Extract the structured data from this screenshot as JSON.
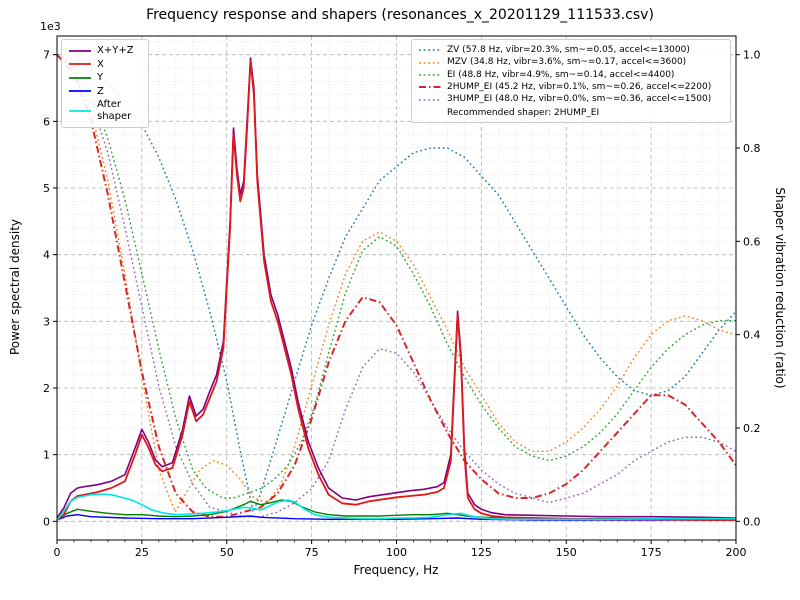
{
  "chart_data": {
    "type": "line",
    "title": "Frequency response and shapers (resonances_x_20201129_111533.csv)",
    "xlabel": "Frequency, Hz",
    "ylabel_left": "Power spectral density",
    "ylabel_left_offset": "1e3",
    "ylabel_right": "Shaper vibration reduction (ratio)",
    "xlim": [
      0,
      200
    ],
    "ylim_left": [
      0,
      7
    ],
    "ylim_right": [
      0,
      1
    ],
    "x_ticks": [
      0,
      25,
      50,
      75,
      100,
      125,
      150,
      175,
      200
    ],
    "y_ticks_left": [
      0,
      1,
      2,
      3,
      4,
      5,
      6,
      7
    ],
    "y_ticks_right": [
      0.0,
      0.2,
      0.4,
      0.6,
      0.8,
      1.0
    ],
    "x_minor_step": 5,
    "y_left_minor_step": 0.2,
    "grid": "both",
    "series": [
      {
        "id": "zv",
        "name": "ZV",
        "axis": "right",
        "color": "#1f77b4",
        "style": "dotted",
        "width": 1.4,
        "x": [
          0,
          5,
          10,
          15,
          20,
          25,
          30,
          35,
          40,
          45,
          50,
          54,
          57.8,
          60,
          65,
          70,
          75,
          80,
          85,
          90,
          95,
          100,
          105,
          110,
          115,
          120,
          125,
          130,
          135,
          140,
          145,
          150,
          155,
          160,
          165,
          170,
          175,
          180,
          185,
          190,
          195,
          200
        ],
        "y": [
          1.0,
          0.99,
          0.97,
          0.94,
          0.9,
          0.85,
          0.78,
          0.69,
          0.58,
          0.45,
          0.3,
          0.15,
          0.02,
          0.06,
          0.18,
          0.3,
          0.42,
          0.52,
          0.61,
          0.67,
          0.73,
          0.76,
          0.79,
          0.8,
          0.8,
          0.78,
          0.74,
          0.7,
          0.64,
          0.58,
          0.52,
          0.46,
          0.4,
          0.35,
          0.31,
          0.28,
          0.27,
          0.28,
          0.31,
          0.36,
          0.41,
          0.45
        ]
      },
      {
        "id": "mzv",
        "name": "MZV",
        "axis": "right",
        "color": "#ff7f0e",
        "style": "dotted",
        "width": 1.4,
        "x": [
          0,
          5,
          10,
          15,
          20,
          25,
          30,
          34.8,
          38,
          42,
          46,
          50,
          54,
          58,
          62,
          66,
          70,
          75,
          80,
          85,
          90,
          95,
          100,
          105,
          110,
          115,
          120,
          125,
          130,
          135,
          140,
          145,
          150,
          155,
          160,
          165,
          170,
          175,
          180,
          185,
          190,
          195,
          200
        ],
        "y": [
          1.0,
          0.97,
          0.88,
          0.73,
          0.53,
          0.31,
          0.11,
          0.02,
          0.06,
          0.11,
          0.13,
          0.12,
          0.09,
          0.05,
          0.04,
          0.08,
          0.16,
          0.29,
          0.42,
          0.53,
          0.6,
          0.62,
          0.6,
          0.55,
          0.48,
          0.41,
          0.33,
          0.27,
          0.21,
          0.17,
          0.15,
          0.15,
          0.17,
          0.2,
          0.24,
          0.29,
          0.35,
          0.4,
          0.43,
          0.44,
          0.43,
          0.41,
          0.4
        ]
      },
      {
        "id": "ei",
        "name": "EI",
        "axis": "right",
        "color": "#2ca02c",
        "style": "dotted",
        "width": 1.4,
        "x": [
          0,
          5,
          10,
          15,
          20,
          25,
          30,
          35,
          40,
          44,
          48.8,
          52,
          56,
          60,
          64,
          68,
          72,
          76,
          80,
          85,
          90,
          95,
          100,
          105,
          110,
          115,
          120,
          125,
          130,
          135,
          140,
          145,
          150,
          155,
          160,
          165,
          170,
          175,
          180,
          185,
          190,
          195,
          200
        ],
        "y": [
          1.0,
          0.98,
          0.92,
          0.82,
          0.69,
          0.53,
          0.37,
          0.22,
          0.11,
          0.07,
          0.05,
          0.05,
          0.06,
          0.07,
          0.09,
          0.12,
          0.17,
          0.25,
          0.36,
          0.49,
          0.58,
          0.61,
          0.59,
          0.53,
          0.46,
          0.38,
          0.31,
          0.25,
          0.2,
          0.16,
          0.14,
          0.13,
          0.14,
          0.16,
          0.19,
          0.23,
          0.28,
          0.33,
          0.37,
          0.4,
          0.42,
          0.43,
          0.43
        ]
      },
      {
        "id": "hump3_ei",
        "name": "3HUMP_EI",
        "axis": "right",
        "color": "#9467bd",
        "style": "dotted",
        "width": 1.4,
        "x": [
          0,
          5,
          10,
          15,
          20,
          25,
          30,
          35,
          40,
          45,
          50,
          55,
          60,
          65,
          70,
          75,
          80,
          85,
          90,
          95,
          100,
          105,
          110,
          115,
          120,
          125,
          130,
          135,
          140,
          145,
          150,
          155,
          160,
          165,
          170,
          175,
          180,
          185,
          190,
          195,
          200
        ],
        "y": [
          1.0,
          0.97,
          0.9,
          0.79,
          0.63,
          0.46,
          0.29,
          0.16,
          0.08,
          0.03,
          0.02,
          0.01,
          0.01,
          0.02,
          0.04,
          0.07,
          0.13,
          0.24,
          0.33,
          0.37,
          0.36,
          0.32,
          0.26,
          0.2,
          0.15,
          0.11,
          0.08,
          0.06,
          0.05,
          0.04,
          0.05,
          0.06,
          0.08,
          0.1,
          0.13,
          0.15,
          0.17,
          0.18,
          0.18,
          0.17,
          0.15
        ]
      },
      {
        "id": "hump2_ei",
        "name": "2HUMP_EI",
        "axis": "right",
        "color": "#d62728",
        "style": "dashdot",
        "width": 2.0,
        "x": [
          0,
          5,
          10,
          15,
          20,
          25,
          30,
          35,
          40,
          45,
          50,
          55,
          60,
          65,
          70,
          75,
          80,
          85,
          90,
          95,
          100,
          105,
          110,
          115,
          120,
          125,
          130,
          135,
          140,
          145,
          150,
          155,
          160,
          165,
          170,
          175,
          180,
          185,
          190,
          195,
          200
        ],
        "y": [
          1.0,
          0.96,
          0.86,
          0.7,
          0.51,
          0.32,
          0.16,
          0.06,
          0.02,
          0.01,
          0.01,
          0.02,
          0.03,
          0.06,
          0.12,
          0.22,
          0.34,
          0.43,
          0.48,
          0.47,
          0.42,
          0.34,
          0.26,
          0.19,
          0.13,
          0.09,
          0.06,
          0.05,
          0.05,
          0.06,
          0.08,
          0.11,
          0.15,
          0.19,
          0.23,
          0.27,
          0.27,
          0.25,
          0.21,
          0.17,
          0.12
        ]
      },
      {
        "id": "psd_xyz",
        "name": "X+Y+Z",
        "axis": "left",
        "color": "#800080",
        "style": "solid",
        "width": 1.6,
        "x": [
          0,
          2,
          4,
          6,
          8,
          12,
          16,
          20,
          23,
          25,
          27,
          29,
          31,
          34,
          37,
          39,
          41,
          43,
          45,
          47,
          49,
          51,
          52,
          53,
          54,
          55,
          56,
          57,
          58,
          59,
          61,
          63,
          65,
          67,
          69,
          71,
          74,
          77,
          80,
          84,
          88,
          92,
          96,
          100,
          104,
          108,
          112,
          114,
          116,
          117,
          118,
          119,
          120,
          121,
          123,
          125,
          128,
          132,
          140,
          150,
          160,
          175,
          190,
          200
        ],
        "y": [
          0.05,
          0.2,
          0.42,
          0.5,
          0.52,
          0.55,
          0.6,
          0.7,
          1.1,
          1.38,
          1.18,
          0.92,
          0.82,
          0.88,
          1.38,
          1.88,
          1.58,
          1.68,
          1.95,
          2.2,
          2.7,
          4.5,
          5.9,
          5.3,
          4.9,
          5.1,
          6.0,
          6.95,
          6.5,
          5.2,
          4.0,
          3.4,
          3.1,
          2.7,
          2.3,
          1.8,
          1.2,
          0.8,
          0.5,
          0.35,
          0.32,
          0.37,
          0.4,
          0.43,
          0.46,
          0.48,
          0.52,
          0.58,
          1.0,
          2.1,
          3.15,
          2.5,
          1.1,
          0.42,
          0.25,
          0.18,
          0.13,
          0.1,
          0.09,
          0.08,
          0.07,
          0.07,
          0.06,
          0.05
        ]
      },
      {
        "id": "psd_y",
        "name": "Y",
        "axis": "left",
        "color": "#008000",
        "style": "solid",
        "width": 1.4,
        "x": [
          0,
          3,
          6,
          10,
          15,
          20,
          25,
          30,
          35,
          40,
          45,
          50,
          55,
          57,
          60,
          63,
          66,
          69,
          72,
          76,
          80,
          85,
          90,
          95,
          100,
          105,
          110,
          115,
          118,
          122,
          126,
          130,
          140,
          150,
          160,
          175,
          190,
          200
        ],
        "y": [
          0.02,
          0.12,
          0.18,
          0.15,
          0.12,
          0.1,
          0.1,
          0.08,
          0.07,
          0.08,
          0.1,
          0.15,
          0.25,
          0.3,
          0.25,
          0.28,
          0.32,
          0.3,
          0.22,
          0.14,
          0.1,
          0.08,
          0.08,
          0.08,
          0.09,
          0.1,
          0.1,
          0.12,
          0.1,
          0.07,
          0.06,
          0.05,
          0.05,
          0.04,
          0.04,
          0.04,
          0.03,
          0.03
        ]
      },
      {
        "id": "psd_z",
        "name": "Z",
        "axis": "left",
        "color": "#0000ff",
        "style": "solid",
        "width": 1.4,
        "x": [
          0,
          3,
          6,
          10,
          20,
          30,
          40,
          50,
          57,
          60,
          70,
          80,
          90,
          100,
          110,
          118,
          125,
          140,
          160,
          180,
          200
        ],
        "y": [
          0.02,
          0.08,
          0.1,
          0.07,
          0.05,
          0.04,
          0.04,
          0.06,
          0.08,
          0.06,
          0.04,
          0.03,
          0.03,
          0.03,
          0.04,
          0.05,
          0.03,
          0.02,
          0.02,
          0.02,
          0.02
        ]
      },
      {
        "id": "psd_x",
        "name": "X",
        "axis": "left",
        "color": "#e01818",
        "style": "solid",
        "width": 1.8,
        "x": [
          0,
          2,
          4,
          6,
          8,
          12,
          16,
          20,
          23,
          25,
          27,
          29,
          31,
          34,
          37,
          39,
          41,
          43,
          45,
          47,
          49,
          51,
          52,
          53,
          54,
          55,
          56,
          57,
          58,
          59,
          61,
          63,
          65,
          67,
          69,
          71,
          74,
          77,
          80,
          84,
          88,
          92,
          96,
          100,
          104,
          108,
          112,
          114,
          116,
          117,
          118,
          119,
          120,
          121,
          123,
          125,
          128,
          132,
          140,
          150,
          160,
          175,
          190,
          200
        ],
        "y": [
          0.02,
          0.1,
          0.3,
          0.38,
          0.4,
          0.44,
          0.5,
          0.6,
          1.0,
          1.3,
          1.1,
          0.85,
          0.75,
          0.8,
          1.3,
          1.8,
          1.5,
          1.6,
          1.85,
          2.1,
          2.6,
          4.4,
          5.8,
          5.2,
          4.8,
          5.0,
          5.9,
          6.9,
          6.4,
          5.1,
          3.9,
          3.3,
          3.0,
          2.6,
          2.2,
          1.7,
          1.1,
          0.7,
          0.4,
          0.27,
          0.25,
          0.3,
          0.33,
          0.36,
          0.38,
          0.4,
          0.44,
          0.5,
          0.9,
          2.0,
          3.1,
          2.4,
          1.0,
          0.35,
          0.18,
          0.12,
          0.08,
          0.06,
          0.05,
          0.04,
          0.03,
          0.03,
          0.02,
          0.02
        ]
      },
      {
        "id": "after_shaper",
        "name": "After shaper",
        "axis": "left",
        "color": "#00e5e5",
        "style": "solid",
        "width": 1.6,
        "x": [
          0,
          2,
          4,
          6,
          8,
          10,
          13,
          16,
          19,
          22,
          25,
          28,
          31,
          35,
          39,
          43,
          47,
          50,
          53,
          55,
          57,
          60,
          63,
          65,
          68,
          70,
          73,
          76,
          80,
          85,
          90,
          95,
          100,
          105,
          110,
          114,
          117,
          119,
          121,
          124,
          128,
          135,
          145,
          160,
          180,
          200
        ],
        "y": [
          0.02,
          0.15,
          0.3,
          0.36,
          0.38,
          0.4,
          0.41,
          0.4,
          0.36,
          0.32,
          0.25,
          0.17,
          0.13,
          0.1,
          0.11,
          0.12,
          0.14,
          0.16,
          0.19,
          0.21,
          0.2,
          0.17,
          0.24,
          0.29,
          0.32,
          0.29,
          0.18,
          0.1,
          0.06,
          0.05,
          0.04,
          0.04,
          0.05,
          0.05,
          0.06,
          0.09,
          0.11,
          0.12,
          0.09,
          0.06,
          0.04,
          0.03,
          0.03,
          0.03,
          0.04,
          0.04
        ]
      }
    ]
  },
  "legend_left": {
    "entries": [
      {
        "label": "X+Y+Z",
        "color": "#800080",
        "dash": "solid",
        "width": 1.8
      },
      {
        "label": "X",
        "color": "#e01818",
        "dash": "solid",
        "width": 1.8
      },
      {
        "label": "Y",
        "color": "#008000",
        "dash": "solid",
        "width": 1.8
      },
      {
        "label": "Z",
        "color": "#0000ff",
        "dash": "solid",
        "width": 1.8
      },
      {
        "label": "After shaper",
        "color": "#00e5e5",
        "dash": "solid",
        "width": 1.8
      }
    ]
  },
  "legend_right": {
    "entries": [
      {
        "label": "ZV (57.8 Hz, vibr=20.3%, sm~=0.05, accel<=13000)",
        "color": "#1f77b4",
        "dash": "dotted",
        "width": 1.5
      },
      {
        "label": "MZV (34.8 Hz, vibr=3.6%, sm~=0.17, accel<=3600)",
        "color": "#ff7f0e",
        "dash": "dotted",
        "width": 1.5
      },
      {
        "label": "EI (48.8 Hz, vibr=4.9%, sm~=0.14, accel<=4400)",
        "color": "#2ca02c",
        "dash": "dotted",
        "width": 1.5
      },
      {
        "label": "2HUMP_EI (45.2 Hz, vibr=0.1%, sm~=0.26, accel<=2200)",
        "color": "#d62728",
        "dash": "dashdot",
        "width": 2.0
      },
      {
        "label": "3HUMP_EI (48.0 Hz, vibr=0.0%, sm~=0.36, accel<=1500)",
        "color": "#9467bd",
        "dash": "dotted",
        "width": 1.5
      }
    ],
    "note": "Recommended shaper: 2HUMP_EI"
  }
}
